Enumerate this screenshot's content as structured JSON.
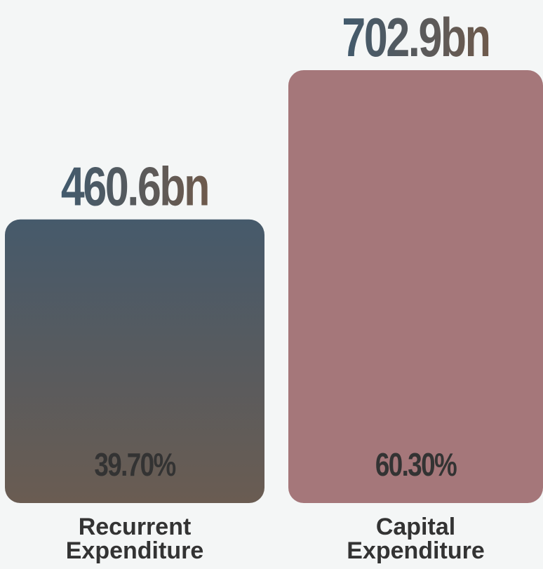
{
  "chart_data": {
    "type": "bar",
    "categories": [
      "Recurrent Expenditure",
      "Capital Expenditure"
    ],
    "values": [
      460.6,
      702.9
    ],
    "value_labels": [
      "460.6bn",
      "702.9bn"
    ],
    "percentages": [
      39.7,
      60.3
    ],
    "percentage_labels": [
      "39.70%",
      "60.30%"
    ],
    "colors": [
      "#465a6b",
      "#a5777a"
    ]
  }
}
